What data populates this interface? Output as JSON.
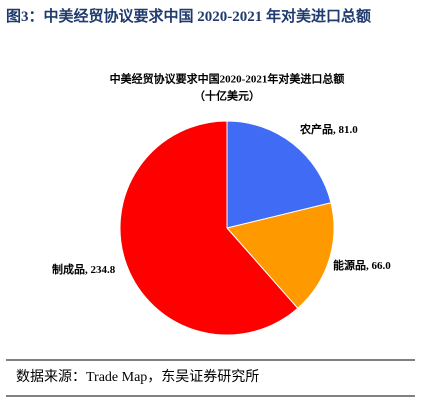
{
  "header": {
    "title": "图3：中美经贸协议要求中国 2020-2021 年对美进口总额"
  },
  "chart_data": {
    "type": "pie",
    "title": "中美经贸协议要求中国2020-2021年对美进口总额",
    "subtitle": "（十亿美元）",
    "categories": [
      "农产品",
      "能源品",
      "制成品"
    ],
    "values": [
      81.0,
      66.0,
      234.8
    ],
    "value_labels": [
      "81.0",
      "66.0",
      "234.8"
    ],
    "label_separator": ", ",
    "colors": [
      "#3f6bf5",
      "#ff9900",
      "#ff0000"
    ]
  },
  "source": "数据来源：Trade Map，东吴证券研究所"
}
